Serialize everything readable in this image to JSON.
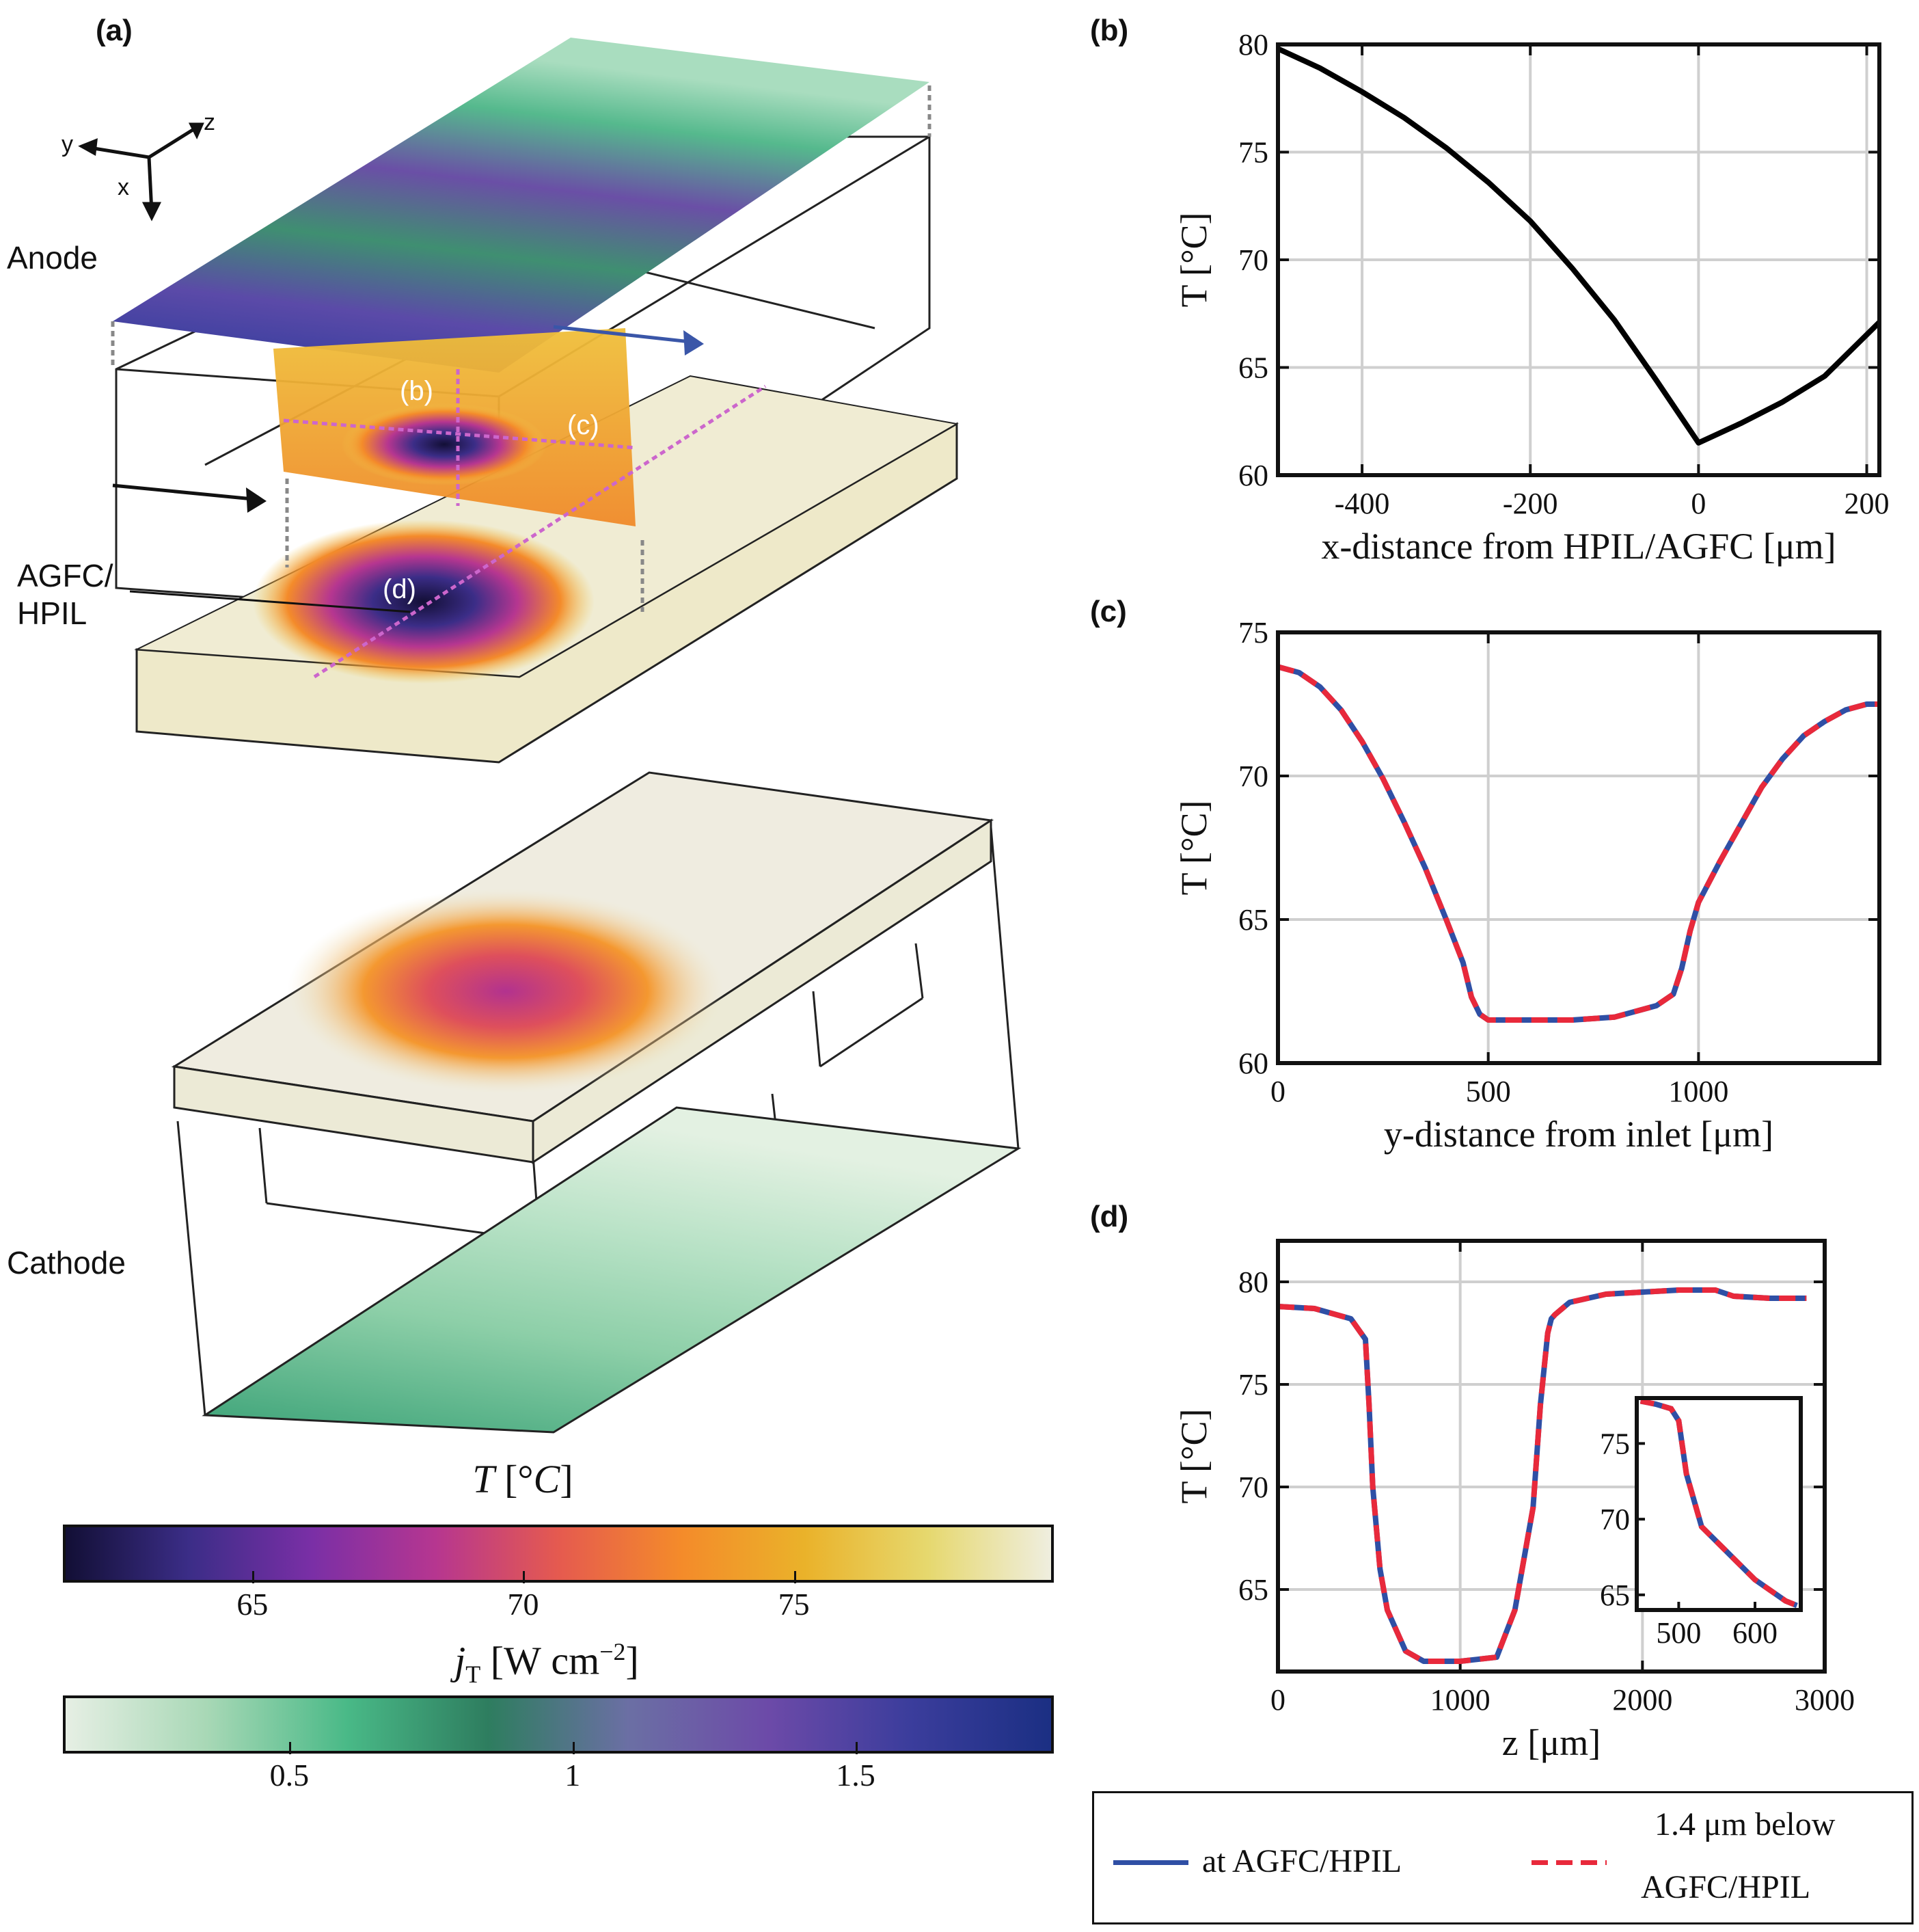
{
  "panel_a": {
    "label": "(a)",
    "anode_label": "Anode",
    "cathode_label": "Cathode",
    "interface_label_line1": "AGFC/",
    "interface_label_line2": "HPIL",
    "axes": {
      "y": "y",
      "z": "z",
      "x": "x"
    },
    "slice_labels": {
      "b": "(b)",
      "c": "(c)",
      "d": "(d)"
    },
    "colorbar_T": {
      "title": "T [°C]",
      "ticks": [
        65,
        70,
        75
      ],
      "range": [
        61.5,
        79.8
      ],
      "colormap": [
        "#120f35",
        "#3b2d87",
        "#7a2fa6",
        "#b63690",
        "#e55a4f",
        "#f48b2a",
        "#eab22a",
        "#e6d86e",
        "#efeedf"
      ]
    },
    "colorbar_j": {
      "title": "j_T [W cm^-2]",
      "ticks": [
        0.5,
        1,
        1.5
      ],
      "range": [
        0.1,
        1.85
      ],
      "colormap": [
        "#e6efe4",
        "#a8d8b6",
        "#49b987",
        "#2e7d5f",
        "#6b6fa4",
        "#6c4aa8",
        "#3b3d9c",
        "#1b2f83"
      ]
    }
  },
  "chart_data": [
    {
      "panel": "(b)",
      "type": "line",
      "xlabel": "x-distance from HPIL/AGFC [μm]",
      "ylabel": "T [°C]",
      "xlim": [
        -500,
        215
      ],
      "ylim": [
        60,
        80
      ],
      "xticks": [
        -400,
        -200,
        0,
        200
      ],
      "yticks": [
        60,
        65,
        70,
        75,
        80
      ],
      "grid": true,
      "series": [
        {
          "color": "#000000",
          "x": [
            -500,
            -450,
            -400,
            -350,
            -300,
            -250,
            -200,
            -150,
            -100,
            -50,
            0,
            50,
            100,
            150,
            215
          ],
          "y": [
            79.8,
            78.9,
            77.8,
            76.6,
            75.2,
            73.6,
            71.8,
            69.6,
            67.2,
            64.4,
            61.5,
            62.4,
            63.4,
            64.6,
            67.1
          ]
        }
      ]
    },
    {
      "panel": "(c)",
      "type": "line",
      "xlabel": "y-distance from inlet [μm]",
      "ylabel": "T [°C]",
      "xlim": [
        0,
        1430
      ],
      "ylim": [
        60,
        75
      ],
      "xticks": [
        0,
        500,
        1000
      ],
      "yticks": [
        60,
        65,
        70,
        75
      ],
      "grid": true,
      "series": [
        {
          "name": "at AGFC/HPIL",
          "color": "#2f4fa5",
          "dash": false,
          "x": [
            0,
            50,
            100,
            150,
            200,
            250,
            300,
            350,
            400,
            440,
            460,
            480,
            500,
            550,
            600,
            700,
            800,
            900,
            940,
            960,
            980,
            1000,
            1050,
            1100,
            1150,
            1200,
            1250,
            1300,
            1350,
            1400,
            1430
          ],
          "y": [
            73.8,
            73.6,
            73.1,
            72.3,
            71.2,
            69.9,
            68.4,
            66.8,
            65.0,
            63.5,
            62.3,
            61.7,
            61.5,
            61.5,
            61.5,
            61.5,
            61.6,
            62.0,
            62.4,
            63.3,
            64.6,
            65.6,
            67.0,
            68.3,
            69.6,
            70.6,
            71.4,
            71.9,
            72.3,
            72.5,
            72.5
          ]
        },
        {
          "name": "1.4 μm below AGFC/HPIL",
          "color": "#e8293b",
          "dash": true,
          "x": [
            0,
            50,
            100,
            150,
            200,
            250,
            300,
            350,
            400,
            440,
            460,
            480,
            500,
            550,
            600,
            700,
            800,
            900,
            940,
            960,
            980,
            1000,
            1050,
            1100,
            1150,
            1200,
            1250,
            1300,
            1350,
            1400,
            1430
          ],
          "y": [
            73.8,
            73.6,
            73.1,
            72.3,
            71.2,
            69.9,
            68.4,
            66.8,
            65.0,
            63.5,
            62.3,
            61.7,
            61.5,
            61.5,
            61.5,
            61.5,
            61.6,
            62.0,
            62.4,
            63.3,
            64.6,
            65.6,
            67.0,
            68.3,
            69.6,
            70.6,
            71.4,
            71.9,
            72.3,
            72.5,
            72.5
          ]
        }
      ]
    },
    {
      "panel": "(d)",
      "type": "line",
      "xlabel": "z [μm]",
      "ylabel": "T [°C]",
      "xlim": [
        0,
        3000
      ],
      "ylim": [
        61,
        82
      ],
      "xticks": [
        0,
        1000,
        2000,
        3000
      ],
      "yticks": [
        65,
        70,
        75,
        80
      ],
      "grid": true,
      "series": [
        {
          "name": "at AGFC/HPIL",
          "color": "#2f4fa5",
          "dash": false,
          "x": [
            0,
            200,
            400,
            480,
            500,
            520,
            560,
            600,
            700,
            800,
            1000,
            1200,
            1300,
            1400,
            1440,
            1480,
            1500,
            1520,
            1600,
            1800,
            2000,
            2200,
            2400,
            2500,
            2700,
            2900
          ],
          "y": [
            78.8,
            78.7,
            78.2,
            77.2,
            74.0,
            70.0,
            66.0,
            64.0,
            62.0,
            61.5,
            61.5,
            61.7,
            64.0,
            69.0,
            74.0,
            77.5,
            78.2,
            78.4,
            79.0,
            79.4,
            79.5,
            79.6,
            79.6,
            79.3,
            79.2,
            79.2
          ]
        },
        {
          "name": "1.4 μm below AGFC/HPIL",
          "color": "#e8293b",
          "dash": true,
          "x": [
            0,
            200,
            400,
            480,
            500,
            520,
            560,
            600,
            700,
            800,
            1000,
            1200,
            1300,
            1400,
            1440,
            1480,
            1500,
            1520,
            1600,
            1800,
            2000,
            2200,
            2400,
            2500,
            2700,
            2900
          ],
          "y": [
            78.8,
            78.7,
            78.2,
            77.2,
            74.0,
            70.0,
            66.0,
            64.0,
            62.0,
            61.5,
            61.5,
            61.7,
            64.0,
            69.0,
            74.0,
            77.5,
            78.2,
            78.4,
            79.0,
            79.4,
            79.5,
            79.6,
            79.6,
            79.3,
            79.2,
            79.2
          ]
        }
      ],
      "inset": {
        "xlim": [
          445,
          660
        ],
        "ylim": [
          64,
          78
        ],
        "xticks": [
          500,
          600
        ],
        "yticks": [
          65,
          70,
          75
        ],
        "x": [
          450,
          470,
          490,
          500,
          510,
          530,
          560,
          600,
          640,
          655
        ],
        "y": [
          77.8,
          77.6,
          77.3,
          76.5,
          73.0,
          69.5,
          68.0,
          66.0,
          64.6,
          64.3
        ]
      }
    }
  ],
  "legend": {
    "item1": "at AGFC/HPIL",
    "item2_line1": "1.4 μm below",
    "item2_line2": "AGFC/HPIL"
  }
}
